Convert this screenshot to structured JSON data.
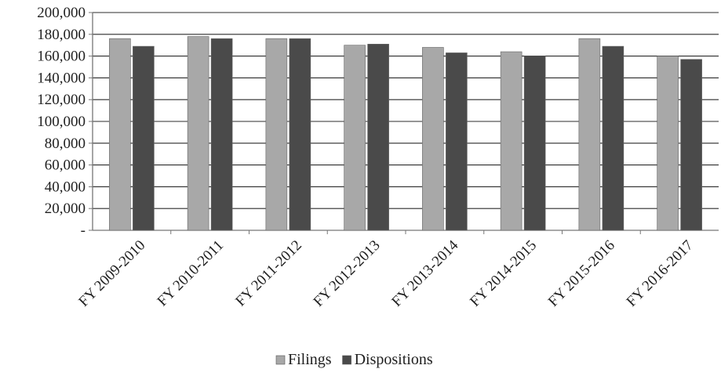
{
  "chart_data": {
    "type": "bar",
    "categories": [
      "FY 2009-2010",
      "FY 2010-2011",
      "FY 2011-2012",
      "FY 2012-2013",
      "FY 2013-2014",
      "FY 2014-2015",
      "FY 2015-2016",
      "FY 2016-2017"
    ],
    "series": [
      {
        "name": "Filings",
        "values": [
          176000,
          178000,
          176000,
          170000,
          168000,
          164000,
          176000,
          160000
        ],
        "color": "#a8a8a8"
      },
      {
        "name": "Dispositions",
        "values": [
          169000,
          176000,
          176000,
          171000,
          163000,
          160000,
          169000,
          157000
        ],
        "color": "#4a4a4a"
      }
    ],
    "yticks": [
      "-",
      "20,000",
      "40,000",
      "60,000",
      "80,000",
      "100,000",
      "120,000",
      "140,000",
      "160,000",
      "180,000",
      "200,000"
    ],
    "ylim": [
      0,
      200000
    ],
    "ystep": 20000,
    "grid": true,
    "legend_position": "bottom-center",
    "title": "",
    "xlabel": "",
    "ylabel": ""
  }
}
